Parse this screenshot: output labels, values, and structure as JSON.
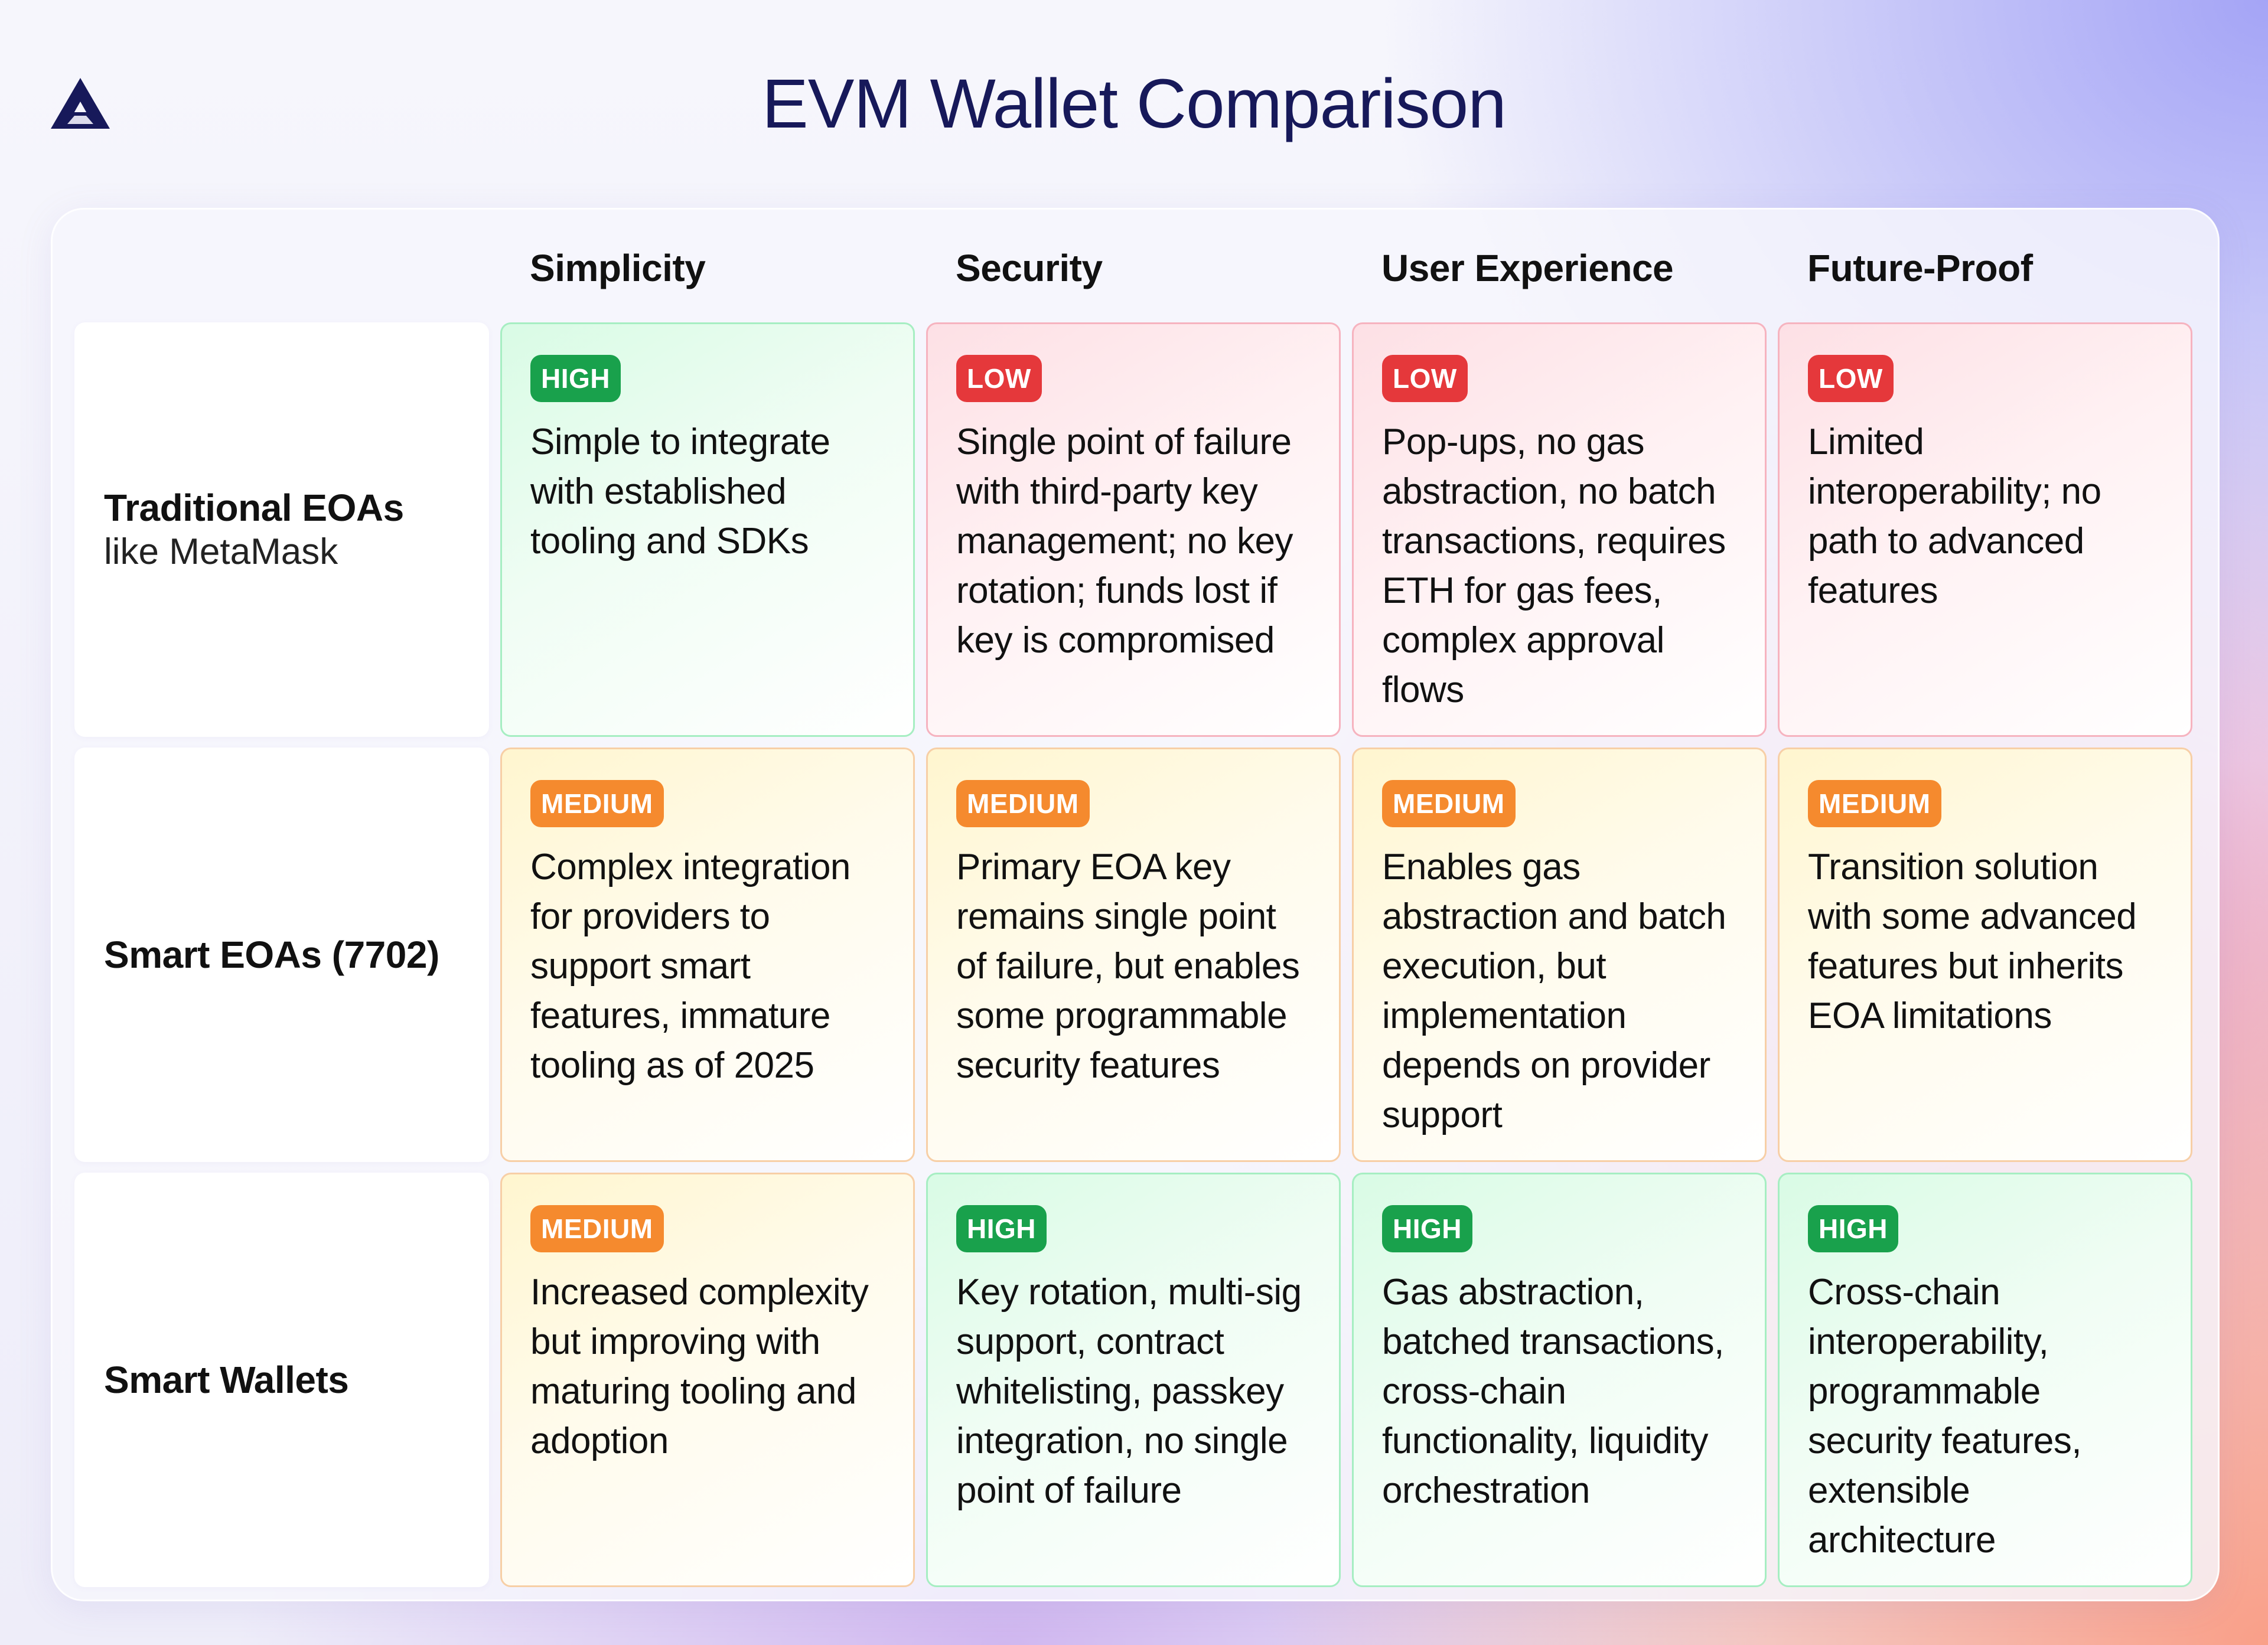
{
  "title": "EVM Wallet Comparison",
  "colors": {
    "title": "#17195a",
    "high": "#19a14c",
    "low": "#e5383b",
    "medium": "#f58a2e",
    "logo": "#17195a"
  },
  "logo": {
    "icon": "triangle-a-logo-icon"
  },
  "table": {
    "columns": [
      "Simplicity",
      "Security",
      "User Experience",
      "Future-Proof"
    ],
    "rows": [
      {
        "name": "Traditional EOAs",
        "subtitle": "like MetaMask",
        "cells": [
          {
            "level": "HIGH",
            "text": "Simple to integrate with established tooling and SDKs"
          },
          {
            "level": "LOW",
            "text": "Single point of failure with third-party key management; no key rotation; funds lost if key is compromised"
          },
          {
            "level": "LOW",
            "text": "Pop-ups, no gas abstraction, no batch transactions, requires ETH for gas fees, complex approval flows"
          },
          {
            "level": "LOW",
            "text": "Limited interoperability; no path to advanced features"
          }
        ]
      },
      {
        "name": "Smart EOAs (7702)",
        "subtitle": "",
        "cells": [
          {
            "level": "MEDIUM",
            "text": "Complex integration for providers to support smart features, immature tooling as of 2025"
          },
          {
            "level": "MEDIUM",
            "text": "Primary EOA key remains single point of failure, but enables some programmable security features"
          },
          {
            "level": "MEDIUM",
            "text": "Enables gas abstraction and batch execution, but implementation depends on provider support"
          },
          {
            "level": "MEDIUM",
            "text": "Transition solution with some advanced features but inherits EOA limitations"
          }
        ]
      },
      {
        "name": "Smart Wallets",
        "subtitle": "",
        "cells": [
          {
            "level": "MEDIUM",
            "text": "Increased complexity but improving with maturing tooling and adoption"
          },
          {
            "level": "HIGH",
            "text": "Key rotation, multi-sig support, contract whitelisting, passkey integration, no single point of failure"
          },
          {
            "level": "HIGH",
            "text": "Gas abstraction, batched transactions, cross-chain functionality, liquidity orchestration"
          },
          {
            "level": "HIGH",
            "text": "Cross-chain interoperability, programmable security features, extensible architecture"
          }
        ]
      }
    ]
  }
}
